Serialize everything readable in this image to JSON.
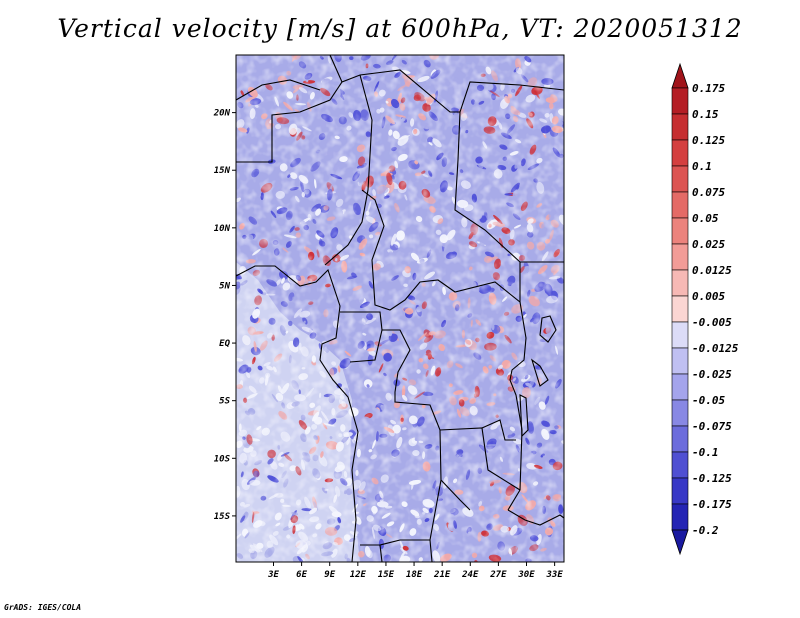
{
  "title": "Vertical velocity [m/s] at 600hPa, VT: 2020051312",
  "footer": "GrADS: IGES/COLA",
  "map": {
    "projection": "latlon",
    "lon_range": [
      -1,
      34
    ],
    "lat_range": [
      -19,
      25
    ],
    "lon_ticks": [
      {
        "value": 3,
        "label": "3E"
      },
      {
        "value": 6,
        "label": "6E"
      },
      {
        "value": 9,
        "label": "9E"
      },
      {
        "value": 12,
        "label": "12E"
      },
      {
        "value": 15,
        "label": "15E"
      },
      {
        "value": 18,
        "label": "18E"
      },
      {
        "value": 21,
        "label": "21E"
      },
      {
        "value": 24,
        "label": "24E"
      },
      {
        "value": 27,
        "label": "27E"
      },
      {
        "value": 30,
        "label": "30E"
      },
      {
        "value": 33,
        "label": "33E"
      }
    ],
    "lat_ticks": [
      {
        "value": 20,
        "label": "20N"
      },
      {
        "value": 15,
        "label": "15N"
      },
      {
        "value": 10,
        "label": "10N"
      },
      {
        "value": 5,
        "label": "5N"
      },
      {
        "value": 0,
        "label": "EQ"
      },
      {
        "value": -5,
        "label": "5S"
      },
      {
        "value": -10,
        "label": "10S"
      },
      {
        "value": -15,
        "label": "15S"
      }
    ]
  },
  "colorbar": {
    "levels": [
      {
        "label": "0.175",
        "color": "#b41e25"
      },
      {
        "label": "0.15",
        "color": "#c62e31"
      },
      {
        "label": "0.125",
        "color": "#d43f3f"
      },
      {
        "label": "0.1",
        "color": "#dc5452"
      },
      {
        "label": "0.075",
        "color": "#e46a66"
      },
      {
        "label": "0.05",
        "color": "#ec837d"
      },
      {
        "label": "0.025",
        "color": "#f29c97"
      },
      {
        "label": "0.0125",
        "color": "#f7b9b5"
      },
      {
        "label": "0.005",
        "color": "#fbd6d3"
      },
      {
        "label": "-0.005",
        "color": "#ffffff"
      },
      {
        "label": "-0.0125",
        "color": "#dcdcf7"
      },
      {
        "label": "-0.025",
        "color": "#c0c0f2"
      },
      {
        "label": "-0.05",
        "color": "#a4a4ec"
      },
      {
        "label": "-0.075",
        "color": "#8888e4"
      },
      {
        "label": "-0.1",
        "color": "#6c6cdc"
      },
      {
        "label": "-0.125",
        "color": "#5050d2"
      },
      {
        "label": "-0.175",
        "color": "#3838c6"
      },
      {
        "label": "-0.2",
        "color": "#2424b4"
      }
    ],
    "top_arrow_color": "#a0141a",
    "bottom_arrow_color": "#1a1aa0"
  },
  "field_colors": {
    "ocean_base": "#cfd3f2",
    "land_base": "#a8abe8",
    "red_strong": "#cf2f36",
    "red_weak": "#f2a9a9",
    "blue_strong": "#4e4fd8",
    "white_patch": "#f4f5fd"
  }
}
